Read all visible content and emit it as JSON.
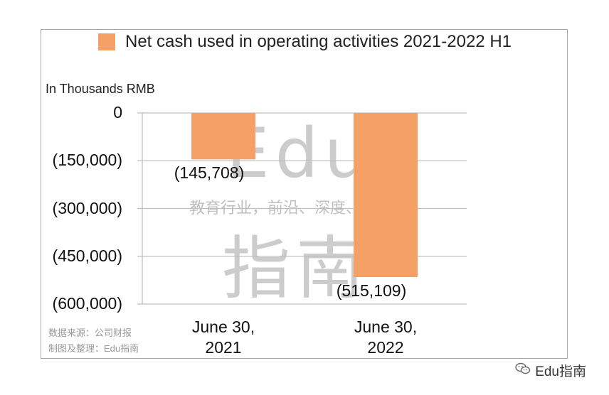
{
  "chart_data": {
    "type": "bar",
    "title": "",
    "ylabel": "In Thousands RMB",
    "xlabel": "",
    "categories": [
      "June 30,\n2021",
      "June 30,\n2022"
    ],
    "series": [
      {
        "name": "Net cash used in operating activities 2021-2022 H1",
        "values": [
          -145708,
          -515109
        ]
      }
    ],
    "data_labels": [
      "(145,708)",
      "(515,109)"
    ],
    "ylim": [
      -600000,
      0
    ],
    "yticks": [
      0,
      -150000,
      -300000,
      -450000,
      -600000
    ],
    "ytick_labels": [
      "0",
      "(150,000)",
      "(300,000)",
      "(450,000)",
      "(600,000)"
    ],
    "grid": true,
    "legend_position": "top",
    "bar_color": "#F4A066",
    "grid_color": "#BFBFBF"
  },
  "source_lines": [
    "数据来源：公司财报",
    "制图及整理：Edu指南"
  ],
  "watermark": {
    "line1": "Edu",
    "line2": "教育行业，前沿、深度、独家",
    "line3": "指南"
  },
  "footer": {
    "brand": "Edu指南",
    "icon": "wechat-icon"
  }
}
